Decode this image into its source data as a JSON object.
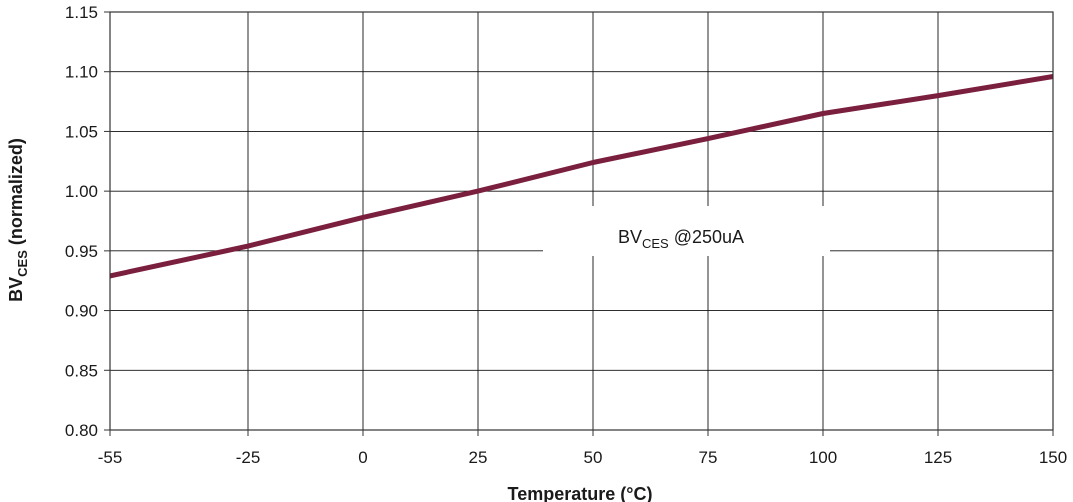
{
  "chart_data": {
    "type": "line",
    "title": "",
    "xlabel": "Temperature (°C)",
    "ylabel": {
      "main": "BV",
      "sub": "CES",
      "rest": " (normalized)"
    },
    "x_ticks": [
      -55,
      -25,
      0,
      25,
      50,
      75,
      100,
      125,
      150
    ],
    "x_tick_labels": [
      "-55",
      "-25",
      "0",
      "25",
      "50",
      "75",
      "100",
      "125",
      "150"
    ],
    "y_ticks": [
      0.8,
      0.85,
      0.9,
      0.95,
      1.0,
      1.05,
      1.1,
      1.15
    ],
    "y_tick_labels": [
      "0.80",
      "0.85",
      "0.90",
      "0.95",
      "1.00",
      "1.05",
      "1.10",
      "1.15"
    ],
    "xlim": [
      -55,
      150
    ],
    "ylim": [
      0.8,
      1.15
    ],
    "grid": true,
    "series": [
      {
        "name": "",
        "color": "#7a1f3d",
        "x": [
          -55,
          -25,
          0,
          25,
          50,
          75,
          100,
          125,
          150
        ],
        "y": [
          0.929,
          0.954,
          0.978,
          1.0,
          1.024,
          1.044,
          1.065,
          1.08,
          1.096
        ]
      }
    ],
    "annotation": {
      "main": "BV",
      "sub": "CES",
      "rest": " @250uA"
    }
  }
}
